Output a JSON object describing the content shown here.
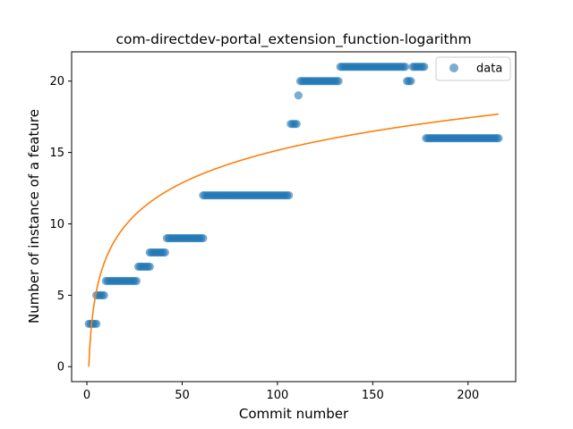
{
  "chart_data": {
    "type": "scatter",
    "title": "com-directdev-portal_extension_function-logarithm",
    "xlabel": "Commit number",
    "ylabel": "Number of instance of a feature",
    "xlim": [
      -8,
      225
    ],
    "ylim": [
      -1.05,
      22.05
    ],
    "xticks": [
      0,
      50,
      100,
      150,
      200
    ],
    "yticks": [
      0,
      5,
      10,
      15,
      20
    ],
    "grid": false,
    "legend": {
      "position": "upper right",
      "entries": [
        "data"
      ]
    },
    "colors": {
      "data": "#1f77b4",
      "fit": "#ff7f0e"
    },
    "series": [
      {
        "name": "data",
        "kind": "scatter",
        "segments": [
          {
            "x_start": 1,
            "x_end": 5,
            "y": 3
          },
          {
            "x_start": 5,
            "x_end": 9,
            "y": 5
          },
          {
            "x_start": 10,
            "x_end": 26,
            "y": 6
          },
          {
            "x_start": 27,
            "x_end": 33,
            "y": 7
          },
          {
            "x_start": 33,
            "x_end": 41,
            "y": 8
          },
          {
            "x_start": 42,
            "x_end": 61,
            "y": 9
          },
          {
            "x_start": 61,
            "x_end": 106,
            "y": 12
          },
          {
            "x_start": 107,
            "x_end": 110,
            "y": 17
          },
          {
            "x_start": 111,
            "x_end": 111,
            "y": 19
          },
          {
            "x_start": 112,
            "x_end": 132,
            "y": 20
          },
          {
            "x_start": 133,
            "x_end": 167,
            "y": 21
          },
          {
            "x_start": 168,
            "x_end": 170,
            "y": 20
          },
          {
            "x_start": 171,
            "x_end": 177,
            "y": 21
          },
          {
            "x_start": 178,
            "x_end": 216,
            "y": 16
          }
        ]
      },
      {
        "name": "",
        "kind": "line",
        "function": "y = a*ln(x)",
        "a": 3.29,
        "x_range": [
          1,
          216
        ]
      }
    ]
  }
}
